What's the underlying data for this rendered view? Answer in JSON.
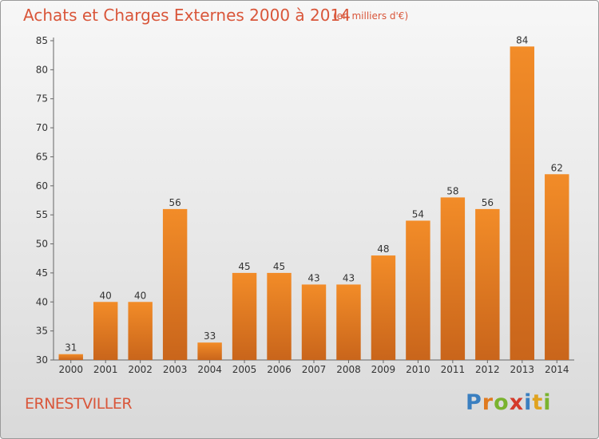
{
  "header": {
    "title": "Achats et Charges Externes 2000 à 2014",
    "subtitle": "(en milliers d'€)"
  },
  "footer": {
    "place_name": "ERNESTVILLER",
    "brand_logo": "Proxiti",
    "brand_letters": [
      {
        "char": "P",
        "color": "#3a7fc0"
      },
      {
        "char": "r",
        "color": "#e07a1f"
      },
      {
        "char": "o",
        "color": "#7ab32e"
      },
      {
        "char": "x",
        "color": "#d43b2b"
      },
      {
        "char": "i",
        "color": "#3a7fc0"
      },
      {
        "char": "t",
        "color": "#e0a31f"
      },
      {
        "char": "i",
        "color": "#7ab32e"
      }
    ]
  },
  "chart_data": {
    "type": "bar",
    "categories": [
      "2000",
      "2001",
      "2002",
      "2003",
      "2004",
      "2005",
      "2006",
      "2007",
      "2008",
      "2009",
      "2010",
      "2011",
      "2012",
      "2013",
      "2014"
    ],
    "values": [
      31,
      40,
      40,
      56,
      33,
      45,
      45,
      43,
      43,
      48,
      54,
      58,
      56,
      84,
      62
    ],
    "ylim": [
      30,
      85
    ],
    "yticks": [
      30,
      35,
      40,
      45,
      50,
      55,
      60,
      65,
      70,
      75,
      80,
      85
    ],
    "grid": false,
    "bar_color": "#f28c28",
    "bar_color_dark": "#c9651b",
    "axis_color": "#666666"
  }
}
